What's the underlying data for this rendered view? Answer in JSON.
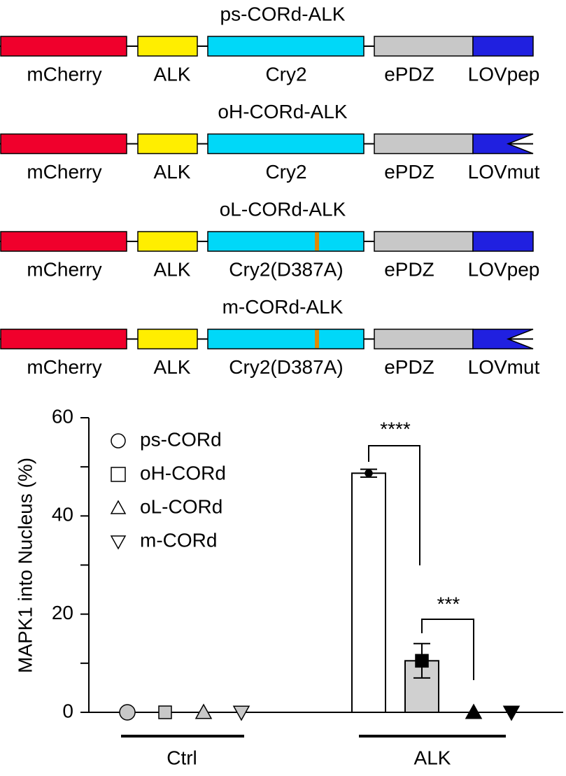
{
  "constructs": [
    {
      "title": "ps-CORd-ALK",
      "domains": [
        "mCherry",
        "ALK",
        "Cry2",
        "ePDZ",
        "LOVpep"
      ]
    },
    {
      "title": "oH-CORd-ALK",
      "domains": [
        "mCherry",
        "ALK",
        "Cry2",
        "ePDZ",
        "LOVmut"
      ]
    },
    {
      "title": "oL-CORd-ALK",
      "domains": [
        "mCherry",
        "ALK",
        "Cry2(D387A)",
        "ePDZ",
        "LOVpep"
      ]
    },
    {
      "title": "m-CORd-ALK",
      "domains": [
        "mCherry",
        "ALK",
        "Cry2(D387A)",
        "ePDZ",
        "LOVmut"
      ]
    }
  ],
  "domain_colors": [
    "#f0002c",
    "#ffee00",
    "#00d8f8",
    "#c8c8c8",
    "#2020e0"
  ],
  "chart_data": {
    "type": "bar",
    "ylabel": "MAPK1 into Nucleus (%)",
    "groups": [
      "Ctrl",
      "ALK"
    ],
    "bars": [
      false,
      true
    ],
    "group_marker_colors": [
      "#c8c8c8",
      "#000000"
    ],
    "ylim": [
      0,
      60
    ],
    "yticks": [
      0,
      20,
      40,
      60
    ],
    "minor_yticks": [
      10,
      30,
      50
    ],
    "series": [
      {
        "name": "ps-CORd",
        "marker": "circle",
        "bar_color": "#ffffff",
        "values": [
          0,
          48.7
        ],
        "errors": [
          null,
          0.8
        ]
      },
      {
        "name": "oH-CORd",
        "marker": "square",
        "bar_color": "#d0d0d0",
        "values": [
          0,
          10.5
        ],
        "errors": [
          null,
          3.5
        ]
      },
      {
        "name": "oL-CORd",
        "marker": "triangle-up",
        "bar_color": "#ffffff",
        "values": [
          0,
          0
        ],
        "errors": [
          null,
          null
        ]
      },
      {
        "name": "m-CORd",
        "marker": "triangle-down",
        "bar_color": "#ffffff",
        "values": [
          0,
          0
        ],
        "errors": [
          null,
          null
        ]
      }
    ],
    "annotations": [
      "****",
      "***"
    ]
  }
}
